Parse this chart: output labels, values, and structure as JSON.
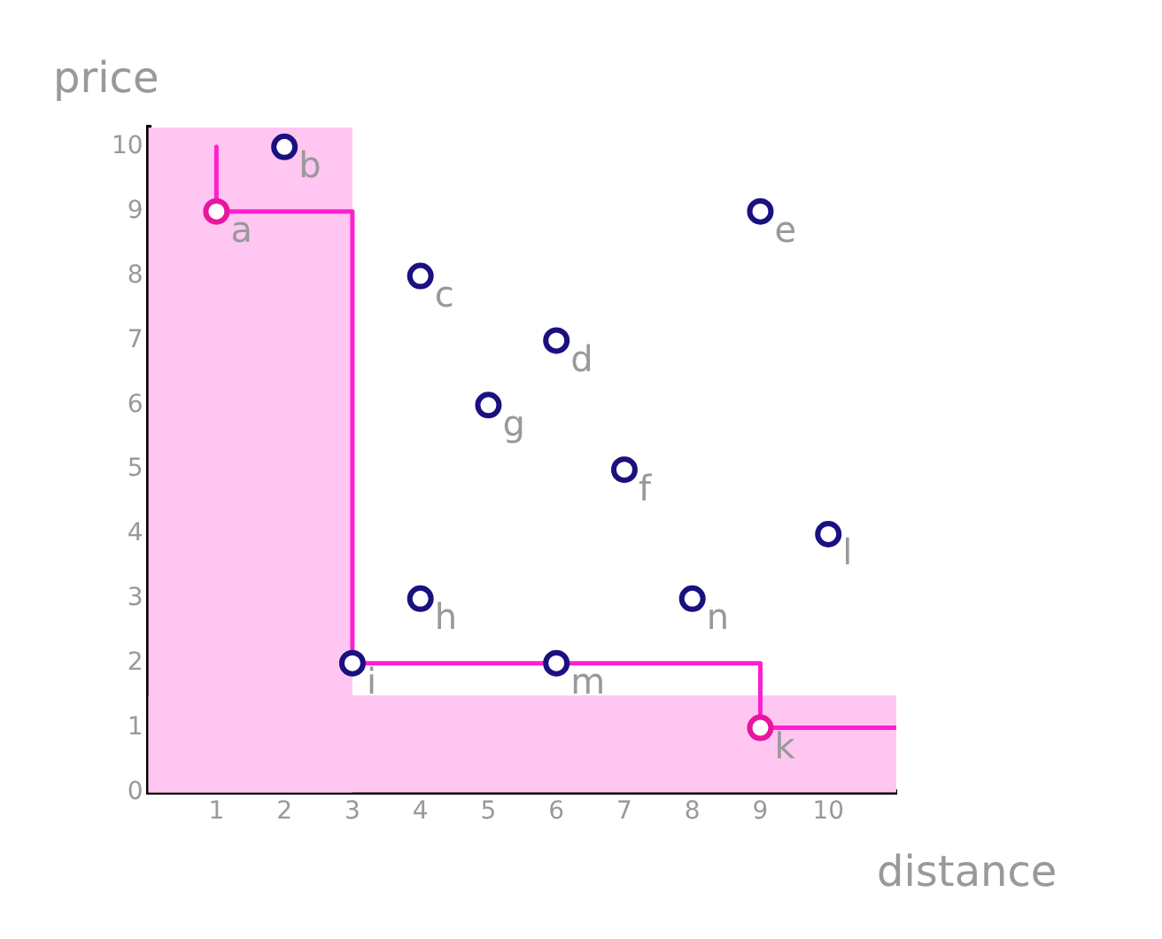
{
  "chart_data": {
    "type": "scatter",
    "xlabel": "distance",
    "ylabel": "price",
    "xlim": [
      0,
      11
    ],
    "ylim": [
      0,
      10.3
    ],
    "xticks": [
      1,
      2,
      3,
      4,
      5,
      6,
      7,
      8,
      9,
      10
    ],
    "yticks": [
      0,
      1,
      2,
      3,
      4,
      5,
      6,
      7,
      8,
      9,
      10
    ],
    "grid": false,
    "legend": false,
    "bands": [
      {
        "axis": "x",
        "from": 0,
        "to": 3,
        "color": "#ffc6f1"
      },
      {
        "axis": "y",
        "from": 0,
        "to": 1.5,
        "color": "#ffc6f1"
      }
    ],
    "series": [
      {
        "type": "scatter",
        "marker": "circle",
        "color": "#1b1080",
        "x": [
          2,
          4,
          6,
          9,
          7,
          5,
          4,
          3,
          10,
          6,
          8
        ],
        "values": [
          10,
          8,
          7,
          9,
          5,
          6,
          3,
          2,
          4,
          2,
          3
        ]
      },
      {
        "type": "scatter",
        "marker": "circle",
        "color": "#e8169f",
        "x": [
          1,
          9
        ],
        "values": [
          9,
          1
        ]
      },
      {
        "type": "line",
        "color": "#ff1fcf",
        "x": [
          1,
          1,
          3,
          3,
          9,
          9,
          11
        ],
        "values": [
          10,
          9,
          9,
          2,
          2,
          1,
          1
        ]
      }
    ],
    "annotations": [
      {
        "text": "a",
        "x": 1,
        "y": 9
      },
      {
        "text": "b",
        "x": 2,
        "y": 10
      },
      {
        "text": "c",
        "x": 4,
        "y": 8
      },
      {
        "text": "d",
        "x": 6,
        "y": 7
      },
      {
        "text": "e",
        "x": 9,
        "y": 9
      },
      {
        "text": "f",
        "x": 7,
        "y": 5
      },
      {
        "text": "g",
        "x": 5,
        "y": 6
      },
      {
        "text": "h",
        "x": 4,
        "y": 3
      },
      {
        "text": "i",
        "x": 3,
        "y": 2
      },
      {
        "text": "k",
        "x": 9,
        "y": 1
      },
      {
        "text": "l",
        "x": 10,
        "y": 4
      },
      {
        "text": "m",
        "x": 6,
        "y": 2
      },
      {
        "text": "n",
        "x": 8,
        "y": 3
      }
    ]
  }
}
